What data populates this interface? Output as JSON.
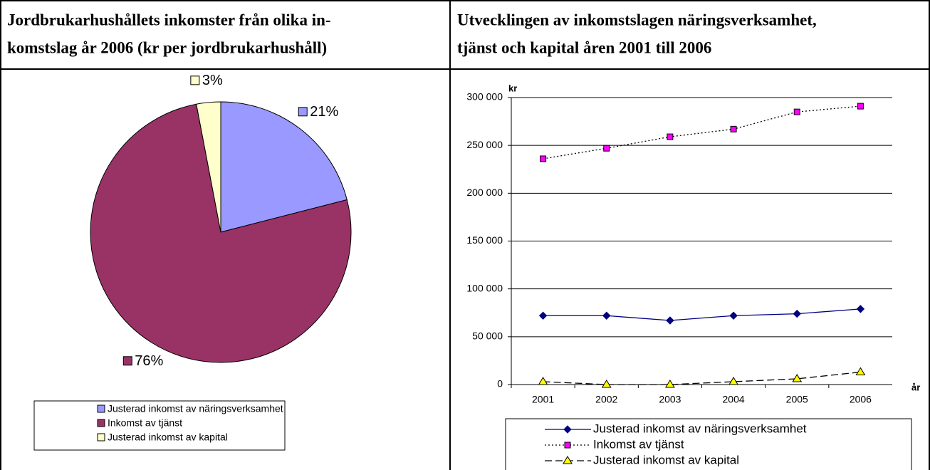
{
  "chart_data": [
    {
      "type": "pie",
      "title": [
        "Jordbrukarhushållets inkomster från olika in-",
        "komstslag år 2006 (kr per jordbrukarhushåll)"
      ],
      "categories": [
        "Justerad inkomst av näringsverksamhet",
        "Inkomst av tjänst",
        "Justerad inkomst av kapital"
      ],
      "values": [
        21,
        76,
        3
      ],
      "value_labels": [
        "21%",
        "76%",
        "3%"
      ],
      "colors": [
        "#9999ff",
        "#993366",
        "#ffffcc"
      ]
    },
    {
      "type": "line",
      "title": [
        "Utvecklingen av inkomstslagen näringsverksamhet,",
        "tjänst och kapital åren 2001 till 2006"
      ],
      "y_label": "kr",
      "x_label": "år",
      "categories": [
        "2001",
        "2002",
        "2003",
        "2004",
        "2005",
        "2006"
      ],
      "ylim": [
        0,
        300000
      ],
      "yticks": [
        0,
        {
          "value": 50000,
          "label": "50 000"
        },
        {
          "value": 100000,
          "label": "100 000"
        },
        {
          "value": 150000,
          "label": "150 000"
        },
        {
          "value": 200000,
          "label": "200 000"
        },
        {
          "value": 250000,
          "label": "250 000"
        },
        {
          "value": 300000,
          "label": "300 000"
        }
      ],
      "grid": true,
      "series": [
        {
          "name": "Justerad inkomst av näringsverksamhet",
          "color": "#000080",
          "marker_color": "#000080",
          "marker": "diamond",
          "dash": "solid",
          "values": [
            72000,
            72000,
            67000,
            72000,
            74000,
            79000
          ]
        },
        {
          "name": "Inkomst av tjänst",
          "color": "#000000",
          "marker_color": "#ff00ff",
          "marker": "square",
          "dash": "dotted",
          "values": [
            236000,
            247000,
            259000,
            267000,
            285000,
            291000
          ]
        },
        {
          "name": "Justerad inkomst av kapital",
          "color": "#000000",
          "marker_color": "#ffff00",
          "marker": "triangle",
          "dash": "dashed",
          "values": [
            3000,
            0,
            0,
            3000,
            6000,
            13000
          ]
        }
      ]
    }
  ]
}
